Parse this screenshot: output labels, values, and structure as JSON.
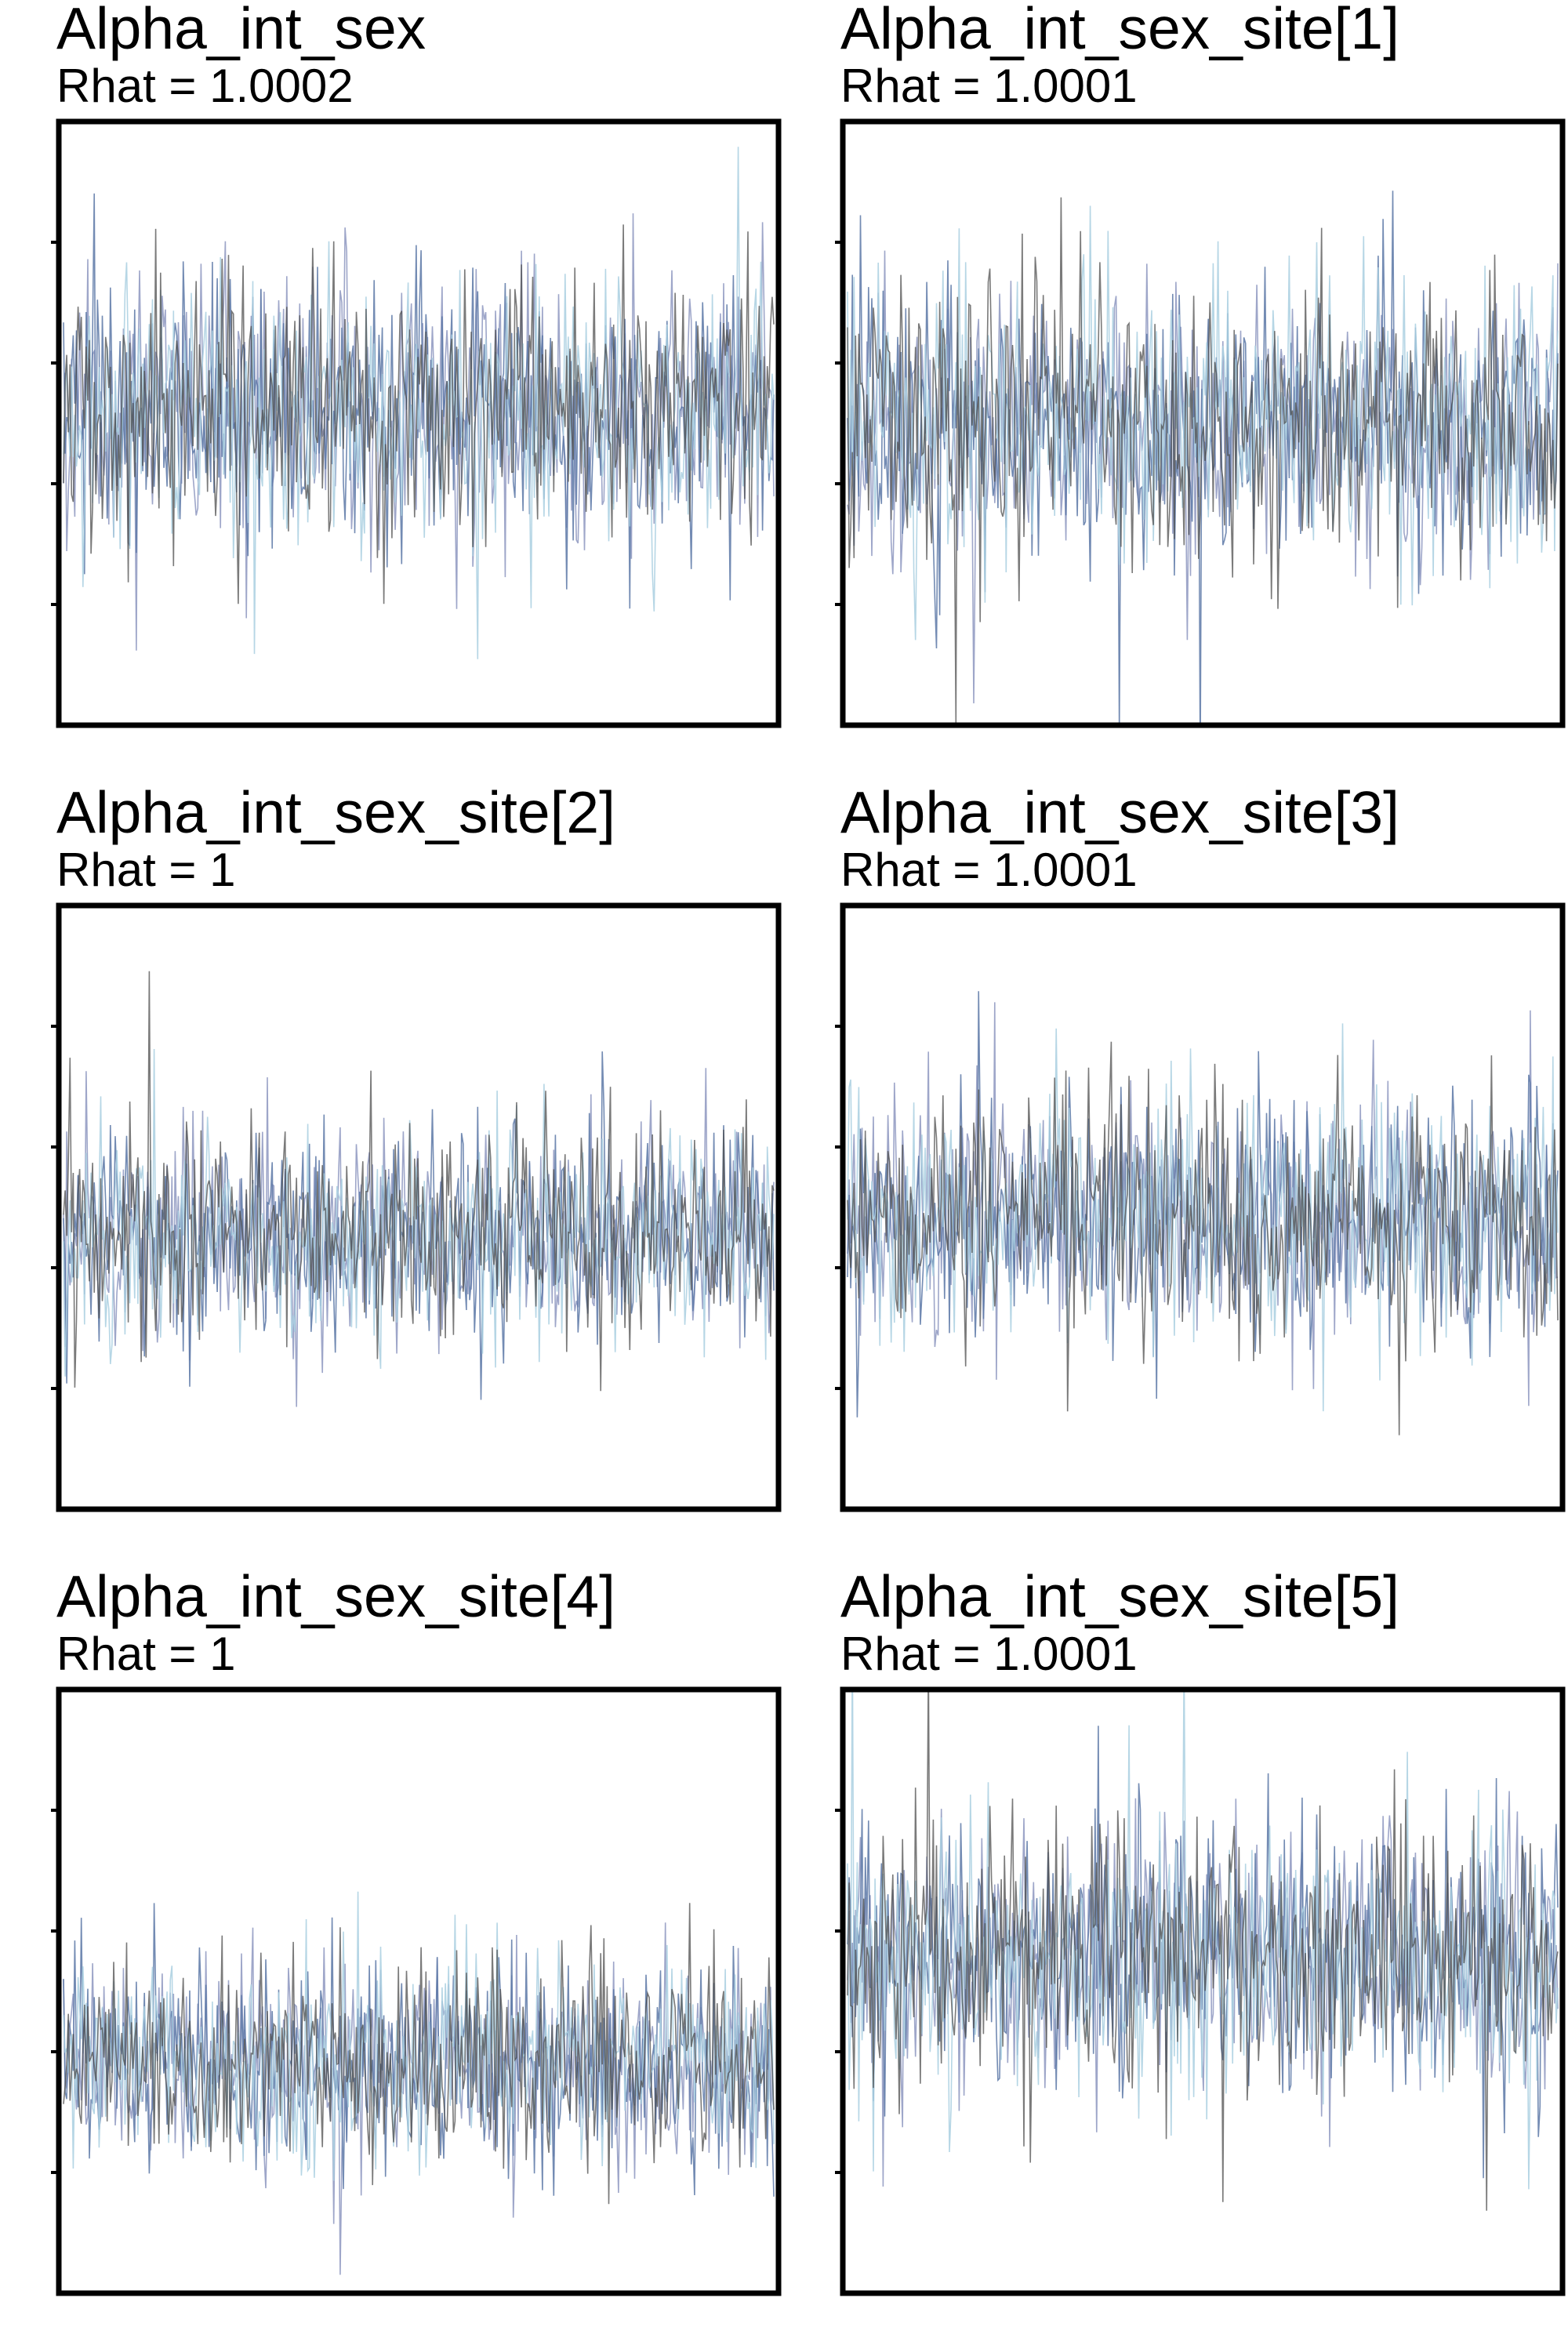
{
  "chart_data": [
    {
      "type": "line",
      "title": "Alpha_int_sex",
      "subtitle": "Rhat = 1.0002",
      "ylim": [
        0,
        1
      ],
      "series": [
        {
          "color": "#8d96c0",
          "trace": {
            "n": 440,
            "mean": 0.52,
            "sd": 0.105,
            "seed": 11
          }
        },
        {
          "color": "#5b77a6",
          "trace": {
            "n": 440,
            "mean": 0.52,
            "sd": 0.105,
            "seed": 12
          }
        },
        {
          "color": "#a9cfe0",
          "trace": {
            "n": 440,
            "mean": 0.52,
            "sd": 0.105,
            "seed": 13
          }
        },
        {
          "color": "#4d4d4d",
          "trace": {
            "n": 440,
            "mean": 0.52,
            "sd": 0.105,
            "seed": 14
          }
        }
      ]
    },
    {
      "type": "line",
      "title": "Alpha_int_sex_site[1]",
      "subtitle": "Rhat = 1.0001",
      "ylim": [
        0,
        1
      ],
      "series": [
        {
          "color": "#8d96c0",
          "trace": {
            "n": 440,
            "mean": 0.5,
            "sd": 0.11,
            "seed": 21
          }
        },
        {
          "color": "#5b77a6",
          "trace": {
            "n": 440,
            "mean": 0.5,
            "sd": 0.11,
            "seed": 22
          }
        },
        {
          "color": "#a9cfe0",
          "trace": {
            "n": 440,
            "mean": 0.5,
            "sd": 0.11,
            "seed": 23
          }
        },
        {
          "color": "#4d4d4d",
          "trace": {
            "n": 440,
            "mean": 0.5,
            "sd": 0.11,
            "seed": 24
          }
        }
      ]
    },
    {
      "type": "line",
      "title": "Alpha_int_sex_site[2]",
      "subtitle": "Rhat = 1",
      "ylim": [
        0,
        1
      ],
      "series": [
        {
          "color": "#8d96c0",
          "trace": {
            "n": 440,
            "mean": 0.45,
            "sd": 0.085,
            "seed": 31
          }
        },
        {
          "color": "#5b77a6",
          "trace": {
            "n": 440,
            "mean": 0.45,
            "sd": 0.085,
            "seed": 32
          }
        },
        {
          "color": "#a9cfe0",
          "trace": {
            "n": 440,
            "mean": 0.45,
            "sd": 0.085,
            "seed": 33
          }
        },
        {
          "color": "#4d4d4d",
          "trace": {
            "n": 440,
            "mean": 0.45,
            "sd": 0.085,
            "seed": 34
          }
        }
      ]
    },
    {
      "type": "line",
      "title": "Alpha_int_sex_site[3]",
      "subtitle": "Rhat = 1.0001",
      "ylim": [
        0,
        1
      ],
      "series": [
        {
          "color": "#8d96c0",
          "trace": {
            "n": 440,
            "mean": 0.48,
            "sd": 0.1,
            "seed": 41
          }
        },
        {
          "color": "#5b77a6",
          "trace": {
            "n": 440,
            "mean": 0.48,
            "sd": 0.1,
            "seed": 42
          }
        },
        {
          "color": "#a9cfe0",
          "trace": {
            "n": 440,
            "mean": 0.48,
            "sd": 0.1,
            "seed": 43
          }
        },
        {
          "color": "#4d4d4d",
          "trace": {
            "n": 440,
            "mean": 0.48,
            "sd": 0.1,
            "seed": 44
          }
        }
      ]
    },
    {
      "type": "line",
      "title": "Alpha_int_sex_site[4]",
      "subtitle": "Rhat = 1",
      "ylim": [
        0,
        1
      ],
      "series": [
        {
          "color": "#8d96c0",
          "trace": {
            "n": 440,
            "mean": 0.38,
            "sd": 0.08,
            "seed": 51
          }
        },
        {
          "color": "#5b77a6",
          "trace": {
            "n": 440,
            "mean": 0.38,
            "sd": 0.08,
            "seed": 52
          }
        },
        {
          "color": "#a9cfe0",
          "trace": {
            "n": 440,
            "mean": 0.38,
            "sd": 0.08,
            "seed": 53
          }
        },
        {
          "color": "#4d4d4d",
          "trace": {
            "n": 440,
            "mean": 0.38,
            "sd": 0.08,
            "seed": 54
          }
        }
      ]
    },
    {
      "type": "line",
      "title": "Alpha_int_sex_site[5]",
      "subtitle": "Rhat = 1.0001",
      "ylim": [
        0,
        1
      ],
      "series": [
        {
          "color": "#8d96c0",
          "trace": {
            "n": 440,
            "mean": 0.55,
            "sd": 0.11,
            "seed": 61
          }
        },
        {
          "color": "#5b77a6",
          "trace": {
            "n": 440,
            "mean": 0.55,
            "sd": 0.11,
            "seed": 62
          }
        },
        {
          "color": "#a9cfe0",
          "trace": {
            "n": 440,
            "mean": 0.55,
            "sd": 0.11,
            "seed": 63
          }
        },
        {
          "color": "#4d4d4d",
          "trace": {
            "n": 440,
            "mean": 0.55,
            "sd": 0.11,
            "seed": 64
          }
        }
      ]
    }
  ]
}
